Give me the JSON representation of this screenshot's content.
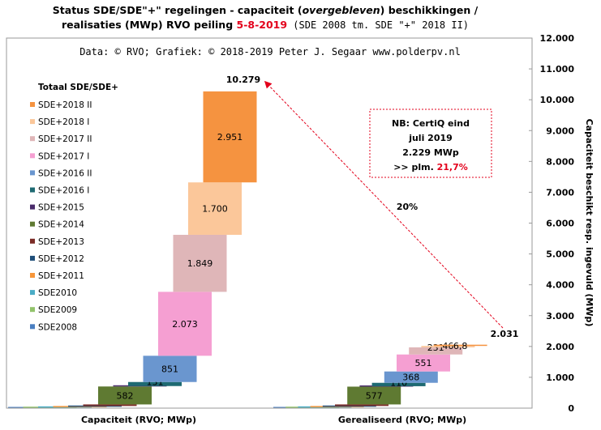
{
  "title": {
    "line1_a": "Status SDE/SDE\"+\"  regelingen - capaciteit (",
    "line1_italic": "overgebleven",
    "line1_b": ") beschikkingen  /",
    "line2_a": "realisaties (MWp) RVO peiling ",
    "line2_date": "5-8-2019",
    "line2_b": " (SDE 2008 tm. SDE \"+\" 2018 II)"
  },
  "source": "Data: © RVO; Grafiek:  © 2018-2019 Peter J. Segaar www.polderpv.nl",
  "note": {
    "line1": "NB: CertiQ eind",
    "line2": "juli 2019",
    "line3": "2.229 MWp",
    "line4_prefix": ">> plm. ",
    "line4_pct": "21,7%"
  },
  "arrow_label": "20%",
  "colors": {
    "accent_red": "#e3001b",
    "arrow": "#e3001b"
  },
  "chart_data": {
    "type": "bar",
    "subtype": "stacked-waterfall",
    "ylabel": "Capaciteit beschikt resp. ingevuld (MWp)",
    "ylim": [
      0,
      12000
    ],
    "yticks": [
      "0",
      "1.000",
      "2.000",
      "3.000",
      "4.000",
      "5.000",
      "6.000",
      "7.000",
      "8.000",
      "9.000",
      "10.000",
      "11.000",
      "12.000"
    ],
    "ytick_values": [
      0,
      1000,
      2000,
      3000,
      4000,
      5000,
      6000,
      7000,
      8000,
      9000,
      10000,
      11000,
      12000
    ],
    "legend_title": "Totaal SDE/SDE+",
    "legend_position": "left",
    "categories": [
      "Capaciteit (RVO; MWp)",
      "Gerealiseerd (RVO; MWp)"
    ],
    "totals": [
      "10.279",
      "2.031"
    ],
    "total_values": [
      10279,
      2031
    ],
    "series": [
      {
        "name": "SDE2008",
        "color": "#4a7fc1",
        "values": [
          8,
          8
        ],
        "labels": [
          "",
          ""
        ]
      },
      {
        "name": "SDE2009",
        "color": "#92c36b",
        "values": [
          10,
          10
        ],
        "labels": [
          "",
          ""
        ]
      },
      {
        "name": "SDE2010",
        "color": "#4bacc6",
        "values": [
          12,
          12
        ],
        "labels": [
          "",
          ""
        ]
      },
      {
        "name": "SDE+2011",
        "color": "#f7963a",
        "values": [
          15,
          15
        ],
        "labels": [
          "",
          ""
        ]
      },
      {
        "name": "SDE+2012",
        "color": "#1f4e79",
        "values": [
          25,
          25
        ],
        "labels": [
          "",
          ""
        ]
      },
      {
        "name": "SDE+2013",
        "color": "#7b2c27",
        "values": [
          50,
          50
        ],
        "labels": [
          "",
          ""
        ]
      },
      {
        "name": "SDE+2014",
        "color": "#5f7a32",
        "values": [
          582,
          577
        ],
        "labels": [
          "582",
          "577"
        ]
      },
      {
        "name": "SDE+2015",
        "color": "#4a2b6b",
        "values": [
          14,
          14
        ],
        "labels": [
          "",
          ""
        ]
      },
      {
        "name": "SDE+2016 I",
        "color": "#1e6a72",
        "values": [
          131,
          110
        ],
        "labels": [
          "131",
          "110"
        ]
      },
      {
        "name": "SDE+2016 II",
        "color": "#6a96cf",
        "values": [
          851,
          368
        ],
        "labels": [
          "851",
          "368"
        ]
      },
      {
        "name": "SDE+2017 I",
        "color": "#f59fd2",
        "values": [
          2073,
          551
        ],
        "labels": [
          "2.073",
          "551"
        ]
      },
      {
        "name": "SDE+2017 II",
        "color": "#dfb6b8",
        "values": [
          1849,
          231
        ],
        "labels": [
          "1.849",
          "231"
        ]
      },
      {
        "name": "SDE+2018 I",
        "color": "#fbc79a",
        "values": [
          1700,
          46
        ],
        "labels": [
          "1.700",
          "46"
        ]
      },
      {
        "name": "SDE+2018 II",
        "color": "#f59340",
        "values": [
          2951,
          6.8
        ],
        "labels": [
          "2.951",
          "6,8"
        ]
      }
    ]
  }
}
